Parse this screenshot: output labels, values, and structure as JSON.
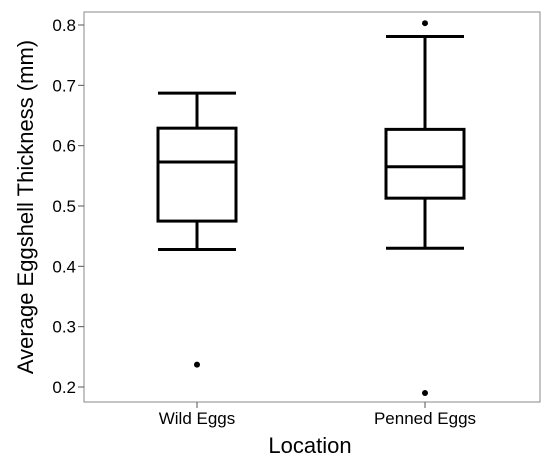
{
  "chart_data": {
    "type": "box",
    "xlabel": "Location",
    "ylabel": "Average Eggshell Thickness (mm)",
    "ylim": [
      0.18,
      0.82
    ],
    "yticks": [
      0.2,
      0.3,
      0.4,
      0.5,
      0.6,
      0.7,
      0.8
    ],
    "ytick_labels": [
      "0.2",
      "0.3",
      "0.4",
      "0.5",
      "0.6",
      "0.7",
      "0.8"
    ],
    "grid": false,
    "categories": [
      "Wild Eggs",
      "Penned Eggs"
    ],
    "boxes": [
      {
        "category": "Wild Eggs",
        "whisker_low": 0.428,
        "q1": 0.475,
        "median": 0.573,
        "q3": 0.629,
        "whisker_high": 0.687,
        "outliers": [
          0.237
        ]
      },
      {
        "category": "Penned Eggs",
        "whisker_low": 0.43,
        "q1": 0.513,
        "median": 0.565,
        "q3": 0.627,
        "whisker_high": 0.781,
        "outliers": [
          0.803,
          0.19
        ]
      }
    ],
    "colors": {
      "stroke": "#000000",
      "frame": "#888888",
      "background": "#ffffff"
    }
  }
}
